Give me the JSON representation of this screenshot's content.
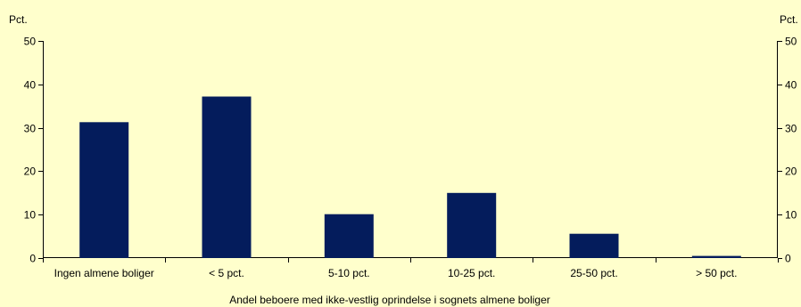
{
  "chart_data": {
    "type": "bar",
    "title": "",
    "categories": [
      "Ingen almene boliger",
      "< 5 pct.",
      "5-10 pct.",
      "10-25 pct.",
      "25-50 pct.",
      "> 50 pct."
    ],
    "values": [
      31.3,
      37.2,
      10.1,
      15.0,
      5.6,
      0.5
    ],
    "xlabel": "Andel beboere med ikke-vestlig oprindelse i sognets almene boliger",
    "ylabel_left": "Pct.",
    "ylabel_right": "Pct.",
    "ylim": [
      0,
      50
    ],
    "yticks": [
      "0",
      "10",
      "20",
      "30",
      "40",
      "50"
    ],
    "grid": false,
    "legend": "none",
    "colors": {
      "bar": "#041c5c",
      "background": "#ffffcc",
      "axis": "#000000"
    }
  }
}
